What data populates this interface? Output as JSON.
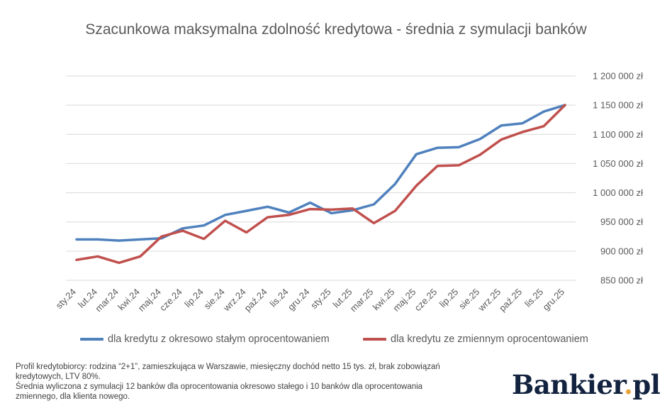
{
  "chart_data": {
    "type": "line",
    "title": "Szacunkowa maksymalna zdolność kredytowa - średnia z symulacji banków",
    "categories": [
      "sty.24",
      "lut.24",
      "mar.24",
      "kwi.24",
      "maj.24",
      "cze.24",
      "lip.24",
      "sie.24",
      "wrz.24",
      "paź.24",
      "lis.24",
      "gru.24",
      "sty.25",
      "lut.25",
      "mar.25",
      "kwi.25",
      "maj.25",
      "cze.25",
      "lip.25",
      "sie.25",
      "wrz.25",
      "paź.25",
      "lis.25",
      "gru.25"
    ],
    "ylim": [
      850000,
      1200000
    ],
    "y_ticks": [
      850000,
      900000,
      950000,
      1000000,
      1050000,
      1100000,
      1150000,
      1200000
    ],
    "y_tick_labels": [
      "850 000 zł",
      "900 000 zł",
      "950 000 zł",
      "1 000 000 zł",
      "1 050 000 zł",
      "1 100 000 zł",
      "1 150 000 zł",
      "1 200 000 zł"
    ],
    "y_axis_position": "right",
    "grid": true,
    "legend_position": "bottom",
    "series": [
      {
        "name": "dla kredytu z okresowo stałym oprocentowaniem",
        "color": "#4F81BD",
        "values": [
          920000,
          920000,
          918000,
          920000,
          922000,
          939000,
          944000,
          962000,
          969000,
          976000,
          966000,
          983000,
          965000,
          970000,
          980000,
          1015000,
          1066000,
          1077000,
          1078000,
          1092000,
          1115000,
          1119000,
          1139000,
          1150000
        ]
      },
      {
        "name": "dla kredytu ze zmiennym oprocentowaniem",
        "color": "#C0504D",
        "values": [
          885000,
          891000,
          880000,
          891000,
          925000,
          935000,
          921000,
          952000,
          932000,
          958000,
          962000,
          972000,
          971000,
          973000,
          948000,
          969000,
          1012000,
          1046000,
          1047000,
          1065000,
          1091000,
          1104000,
          1114000,
          1150000
        ]
      }
    ]
  },
  "footnote": {
    "line1": "Profil kredytobiorcy: rodzina “2+1”, zamieszkująca w Warszawie, miesięczny dochód netto 15 tys. zł, brak zobowiązań kredytowych, LTV 80%.",
    "line2": "Średnia wyliczona z symulacji 12 banków dla oprocentowania okresowo stałego i 10 banków dla oprocentowania zmiennego, dla klienta nowego."
  },
  "logo": {
    "main": "Bankier",
    "dot": ".",
    "suffix": "pl"
  }
}
